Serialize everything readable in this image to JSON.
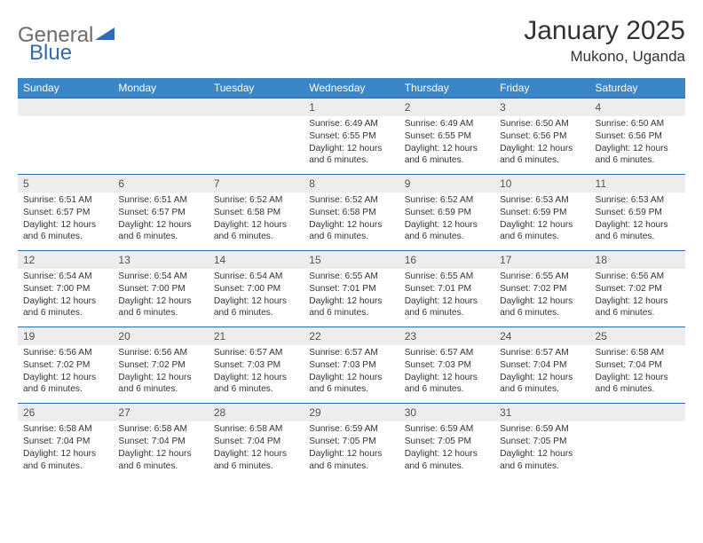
{
  "logo": {
    "part1": "General",
    "part2": "Blue"
  },
  "header": {
    "title": "January 2025",
    "location": "Mukono, Uganda"
  },
  "colors": {
    "header_bg": "#3b86c7",
    "header_text": "#ffffff",
    "daynum_bg": "#ededed",
    "daynum_border": "#2e6bb0",
    "text": "#333333",
    "logo_gray": "#6b6b6b",
    "logo_blue": "#2e6bb0"
  },
  "weekdays": [
    "Sunday",
    "Monday",
    "Tuesday",
    "Wednesday",
    "Thursday",
    "Friday",
    "Saturday"
  ],
  "weeks": [
    {
      "nums": [
        "",
        "",
        "",
        "1",
        "2",
        "3",
        "4"
      ],
      "info": [
        "",
        "",
        "",
        "Sunrise: 6:49 AM\nSunset: 6:55 PM\nDaylight: 12 hours and 6 minutes.",
        "Sunrise: 6:49 AM\nSunset: 6:55 PM\nDaylight: 12 hours and 6 minutes.",
        "Sunrise: 6:50 AM\nSunset: 6:56 PM\nDaylight: 12 hours and 6 minutes.",
        "Sunrise: 6:50 AM\nSunset: 6:56 PM\nDaylight: 12 hours and 6 minutes."
      ]
    },
    {
      "nums": [
        "5",
        "6",
        "7",
        "8",
        "9",
        "10",
        "11"
      ],
      "info": [
        "Sunrise: 6:51 AM\nSunset: 6:57 PM\nDaylight: 12 hours and 6 minutes.",
        "Sunrise: 6:51 AM\nSunset: 6:57 PM\nDaylight: 12 hours and 6 minutes.",
        "Sunrise: 6:52 AM\nSunset: 6:58 PM\nDaylight: 12 hours and 6 minutes.",
        "Sunrise: 6:52 AM\nSunset: 6:58 PM\nDaylight: 12 hours and 6 minutes.",
        "Sunrise: 6:52 AM\nSunset: 6:59 PM\nDaylight: 12 hours and 6 minutes.",
        "Sunrise: 6:53 AM\nSunset: 6:59 PM\nDaylight: 12 hours and 6 minutes.",
        "Sunrise: 6:53 AM\nSunset: 6:59 PM\nDaylight: 12 hours and 6 minutes."
      ]
    },
    {
      "nums": [
        "12",
        "13",
        "14",
        "15",
        "16",
        "17",
        "18"
      ],
      "info": [
        "Sunrise: 6:54 AM\nSunset: 7:00 PM\nDaylight: 12 hours and 6 minutes.",
        "Sunrise: 6:54 AM\nSunset: 7:00 PM\nDaylight: 12 hours and 6 minutes.",
        "Sunrise: 6:54 AM\nSunset: 7:00 PM\nDaylight: 12 hours and 6 minutes.",
        "Sunrise: 6:55 AM\nSunset: 7:01 PM\nDaylight: 12 hours and 6 minutes.",
        "Sunrise: 6:55 AM\nSunset: 7:01 PM\nDaylight: 12 hours and 6 minutes.",
        "Sunrise: 6:55 AM\nSunset: 7:02 PM\nDaylight: 12 hours and 6 minutes.",
        "Sunrise: 6:56 AM\nSunset: 7:02 PM\nDaylight: 12 hours and 6 minutes."
      ]
    },
    {
      "nums": [
        "19",
        "20",
        "21",
        "22",
        "23",
        "24",
        "25"
      ],
      "info": [
        "Sunrise: 6:56 AM\nSunset: 7:02 PM\nDaylight: 12 hours and 6 minutes.",
        "Sunrise: 6:56 AM\nSunset: 7:02 PM\nDaylight: 12 hours and 6 minutes.",
        "Sunrise: 6:57 AM\nSunset: 7:03 PM\nDaylight: 12 hours and 6 minutes.",
        "Sunrise: 6:57 AM\nSunset: 7:03 PM\nDaylight: 12 hours and 6 minutes.",
        "Sunrise: 6:57 AM\nSunset: 7:03 PM\nDaylight: 12 hours and 6 minutes.",
        "Sunrise: 6:57 AM\nSunset: 7:04 PM\nDaylight: 12 hours and 6 minutes.",
        "Sunrise: 6:58 AM\nSunset: 7:04 PM\nDaylight: 12 hours and 6 minutes."
      ]
    },
    {
      "nums": [
        "26",
        "27",
        "28",
        "29",
        "30",
        "31",
        ""
      ],
      "info": [
        "Sunrise: 6:58 AM\nSunset: 7:04 PM\nDaylight: 12 hours and 6 minutes.",
        "Sunrise: 6:58 AM\nSunset: 7:04 PM\nDaylight: 12 hours and 6 minutes.",
        "Sunrise: 6:58 AM\nSunset: 7:04 PM\nDaylight: 12 hours and 6 minutes.",
        "Sunrise: 6:59 AM\nSunset: 7:05 PM\nDaylight: 12 hours and 6 minutes.",
        "Sunrise: 6:59 AM\nSunset: 7:05 PM\nDaylight: 12 hours and 6 minutes.",
        "Sunrise: 6:59 AM\nSunset: 7:05 PM\nDaylight: 12 hours and 6 minutes.",
        ""
      ]
    }
  ]
}
